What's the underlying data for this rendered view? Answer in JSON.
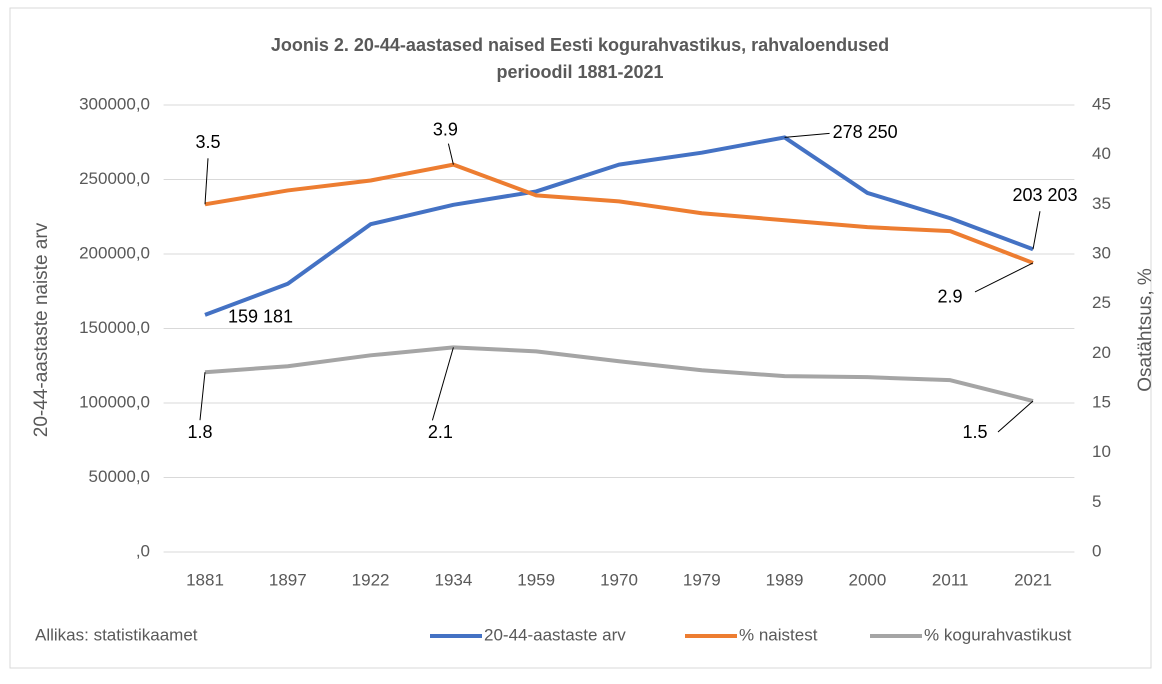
{
  "chart_data": {
    "type": "line",
    "title": [
      "Joonis 2. 20-44-aastased naised Eesti kogurahvastikus, rahvaloendused",
      "perioodil 1881-2021"
    ],
    "y_label": "20-44-aastaste naiste arv",
    "y2_label": "Osatähtsus, %",
    "source": "Allikas: statistikaamet",
    "categories": [
      "1881",
      "1897",
      "1922",
      "1934",
      "1959",
      "1970",
      "1979",
      "1989",
      "2000",
      "2011",
      "2021"
    ],
    "ylim": [
      0,
      300000
    ],
    "yticks": [
      {
        "value": 0,
        "label": ",0"
      },
      {
        "value": 50000,
        "label": "50000,0"
      },
      {
        "value": 100000,
        "label": "100000,0"
      },
      {
        "value": 150000,
        "label": "150000,0"
      },
      {
        "value": 200000,
        "label": "200000,0"
      },
      {
        "value": 250000,
        "label": "250000,0"
      },
      {
        "value": 300000,
        "label": "300000,0"
      }
    ],
    "y2lim": [
      0,
      45
    ],
    "y2ticks": [
      0,
      5,
      10,
      15,
      20,
      25,
      30,
      35,
      40,
      45
    ],
    "grid": true,
    "legend": "bottom",
    "series": [
      {
        "name": "20-44-aastaste arv",
        "color": "#4472c4",
        "values": [
          159181,
          180000,
          220000,
          233000,
          242000,
          260000,
          268000,
          278250,
          241000,
          224000,
          203203
        ],
        "value_labels": [
          "159 181",
          null,
          null,
          null,
          null,
          null,
          null,
          "278 250",
          null,
          null,
          "203 203"
        ]
      },
      {
        "name": "% naistest",
        "color": "#ed7d31",
        "axis": "y2",
        "values": [
          35,
          36.4,
          37.4,
          39,
          35.9,
          35.3,
          34.1,
          33.4,
          32.7,
          32.3,
          29.1
        ]
      },
      {
        "name": "% kogurahvastikust",
        "color": "#a5a5a5",
        "axis": "y2",
        "values": [
          18.1,
          18.7,
          19.8,
          20.6,
          20.2,
          19.2,
          18.3,
          17.7,
          17.6,
          17.3,
          15.2
        ]
      }
    ],
    "annotations": [
      {
        "text": "3.5",
        "series": 1,
        "index": 0
      },
      {
        "text": "3.9",
        "series": 1,
        "index": 3
      },
      {
        "text": "2.9",
        "series": 1,
        "index": 10
      },
      {
        "text": "1.8",
        "series": 2,
        "index": 0
      },
      {
        "text": "2.1",
        "series": 2,
        "index": 3
      },
      {
        "text": "1.5",
        "series": 2,
        "index": 10
      }
    ]
  }
}
